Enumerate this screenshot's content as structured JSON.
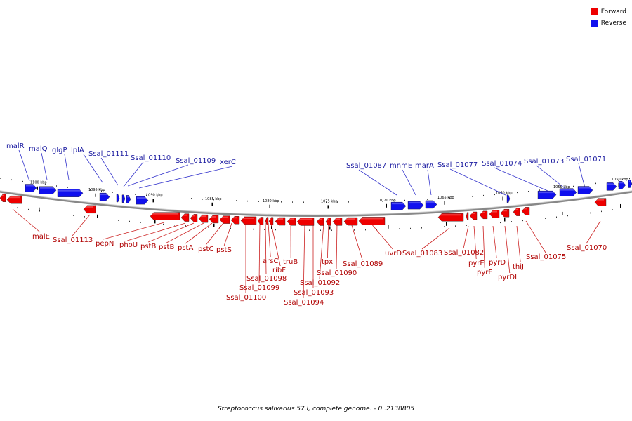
{
  "legend": {
    "forward": {
      "label": "Forward",
      "color": "#ee0000"
    },
    "reverse": {
      "label": "Reverse",
      "color": "#1010ee"
    }
  },
  "caption": "Streptococcus salivarius 57.I, complete genome. - 0..2138805",
  "kbp_labels": [
    "1100 kbp",
    "1095 kbp",
    "1090 kbp",
    "1085 kbp",
    "1080 kbp",
    "1075 kbp",
    "1070 kbp",
    "1065 kbp",
    "1060 kbp",
    "1055 kbp",
    "1050 kbp"
  ],
  "genes_reverse": [
    "malR",
    "malQ",
    "glgP",
    "lplA",
    "Ssal_01111",
    "Ssal_01110",
    "Ssal_01109",
    "xerC",
    "Ssal_01087",
    "mnmE",
    "marA",
    "Ssal_01077",
    "Ssal_01074",
    "Ssal_01073",
    "Ssal_01071"
  ],
  "genes_forward": [
    "malE",
    "Ssal_01113",
    "pepN",
    "phoU",
    "pstB",
    "pstB",
    "pstA",
    "pstC",
    "pstS",
    "Ssal_01100",
    "Ssal_01099",
    "Ssal_01098",
    "arsC",
    "ribF",
    "truB",
    "Ssal_01094",
    "Ssal_01093",
    "Ssal_01092",
    "tpx",
    "Ssal_01090",
    "Ssal_01089",
    "uvrD",
    "Ssal_01083",
    "Ssal_01082",
    "pyrE",
    "pyrF",
    "pyrD",
    "pyrDII",
    "thiJ",
    "Ssal_01075",
    "Ssal_01070"
  ]
}
